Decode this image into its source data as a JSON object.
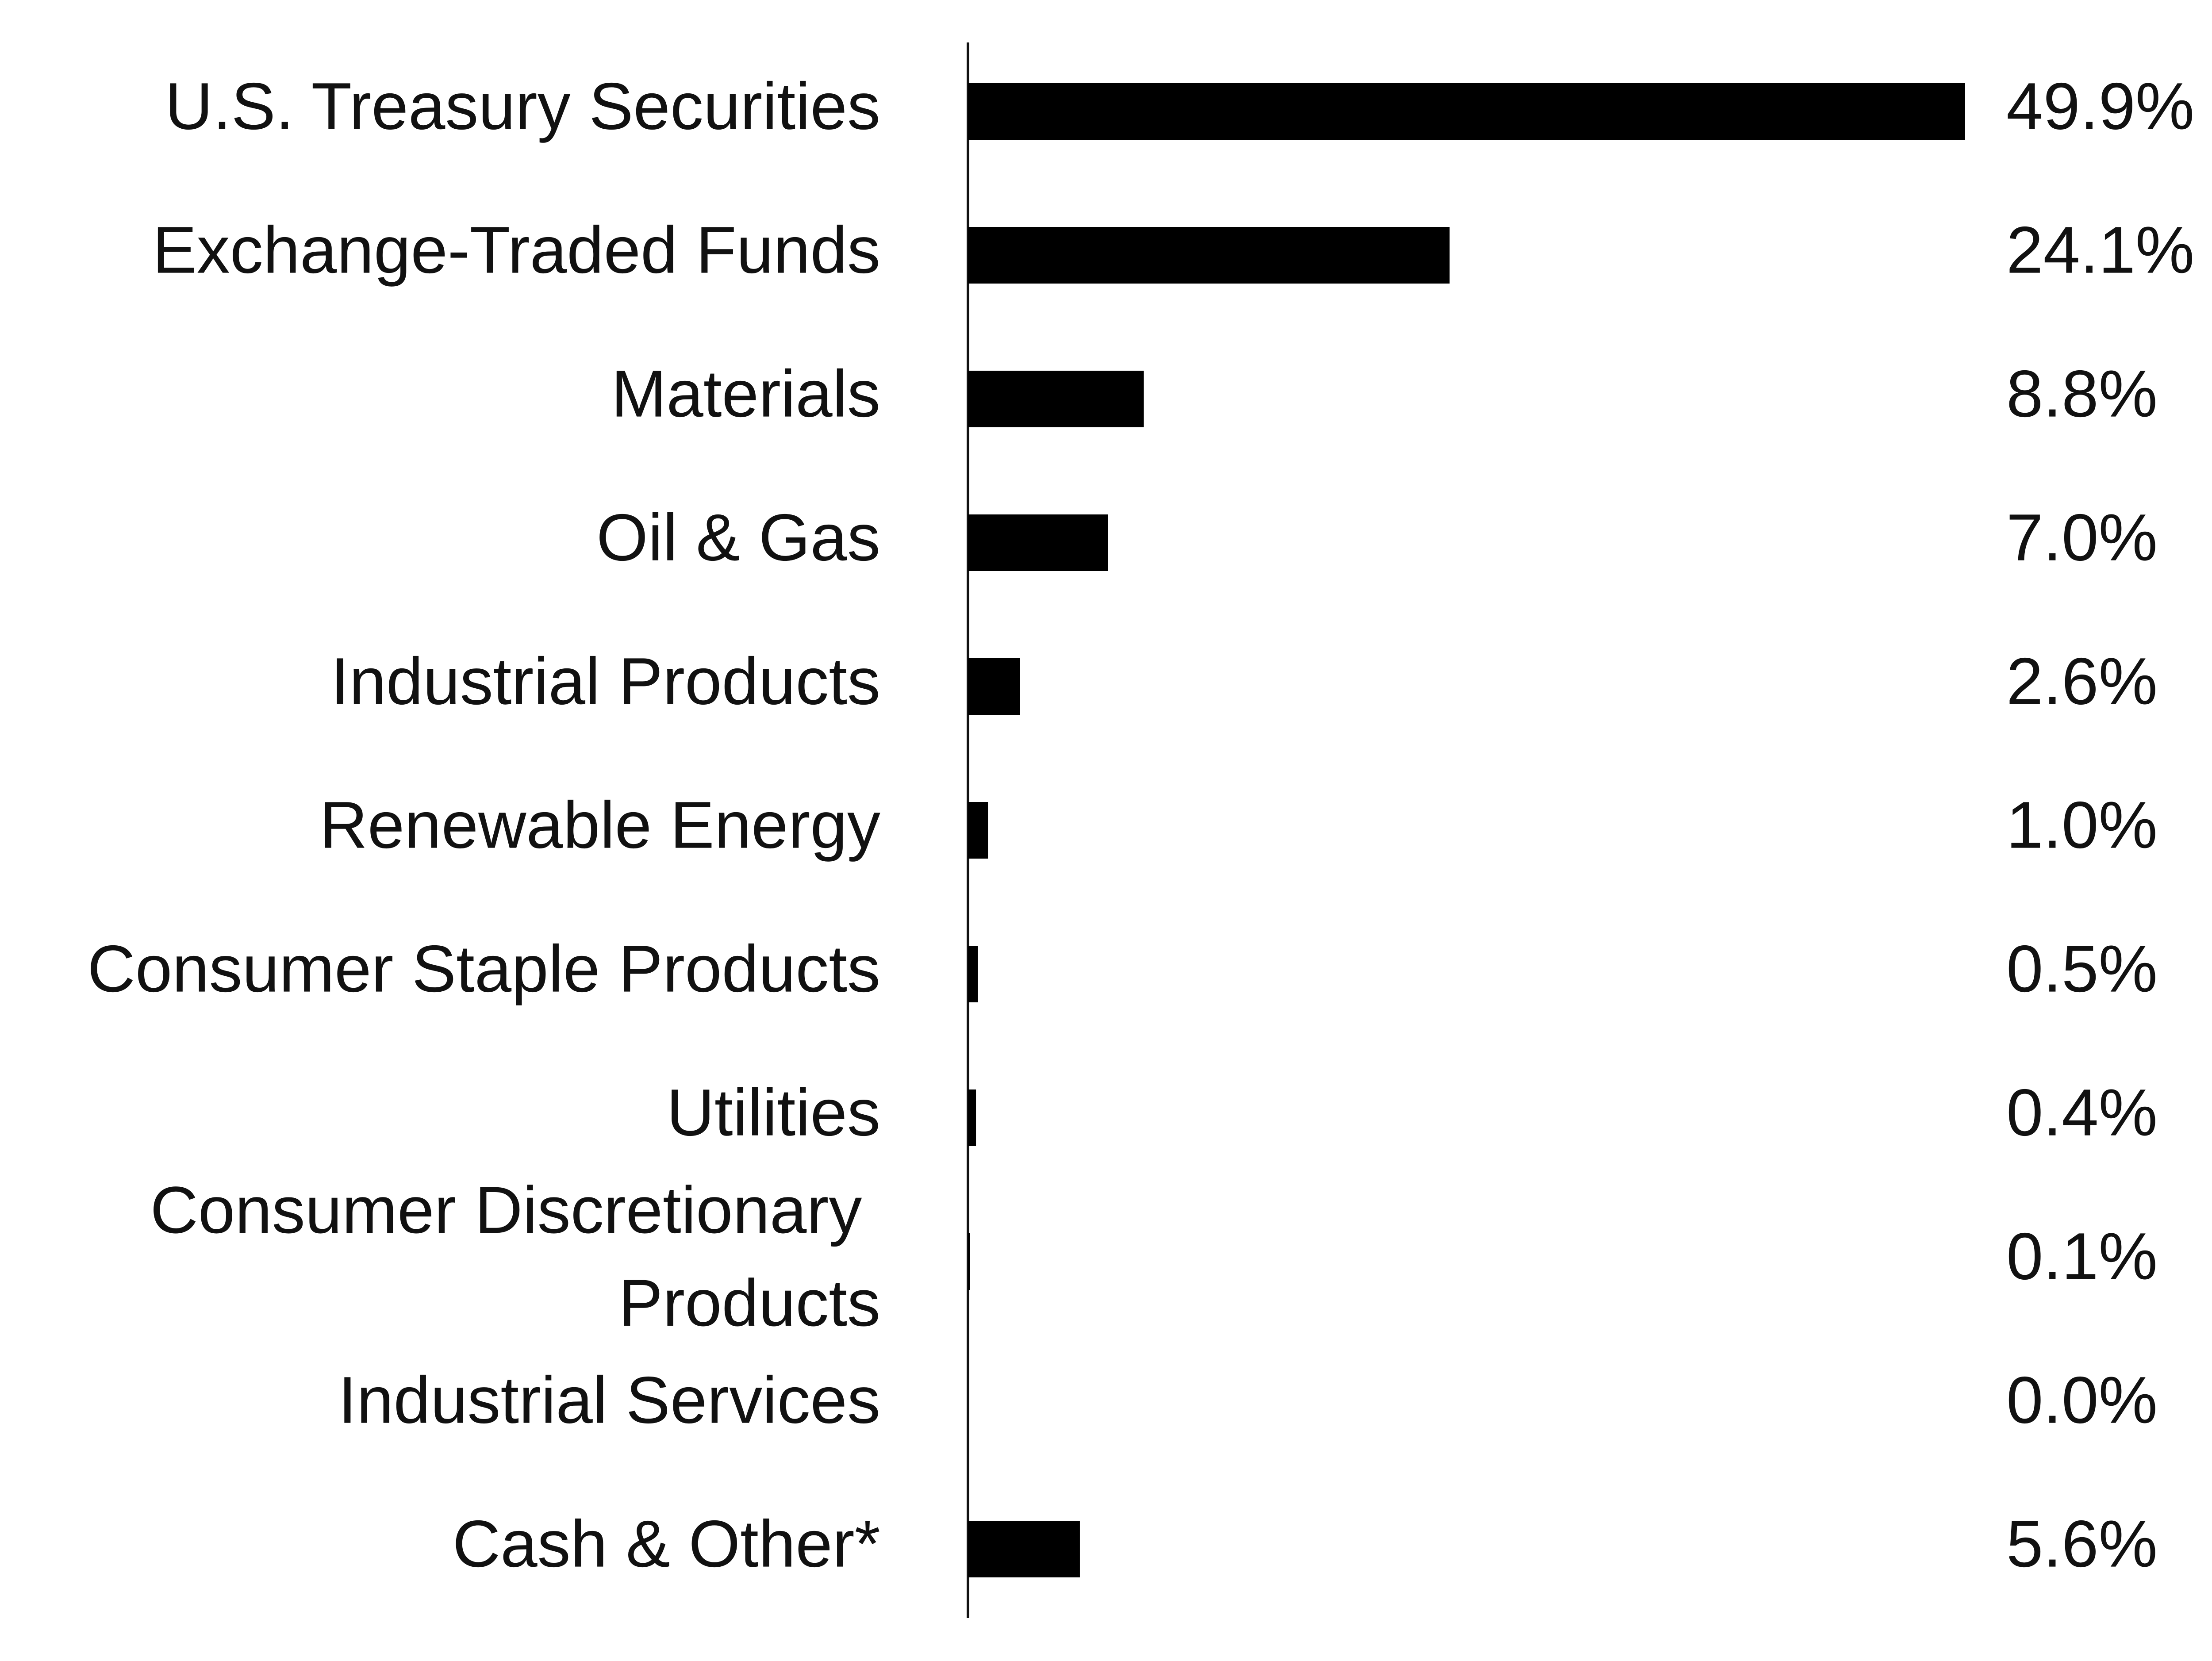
{
  "chart_data": {
    "type": "hbar",
    "categories": [
      "U.S. Treasury Securities",
      "Exchange-Traded Funds",
      "Materials",
      "Oil & Gas",
      "Industrial Products",
      "Renewable Energy",
      "Consumer Staple Products",
      "Utilities",
      "Consumer Discretionary Products",
      "Industrial Services",
      "Cash & Other*"
    ],
    "values": [
      49.9,
      24.1,
      8.8,
      7.0,
      2.6,
      1.0,
      0.5,
      0.4,
      0.1,
      0.0,
      5.6
    ],
    "value_labels": [
      "49.9%",
      "24.1%",
      "8.8%",
      "7.0%",
      "2.6%",
      "1.0%",
      "0.5%",
      "0.4%",
      "0.1%",
      "0.0%",
      "5.6%"
    ],
    "color": "#000000"
  }
}
